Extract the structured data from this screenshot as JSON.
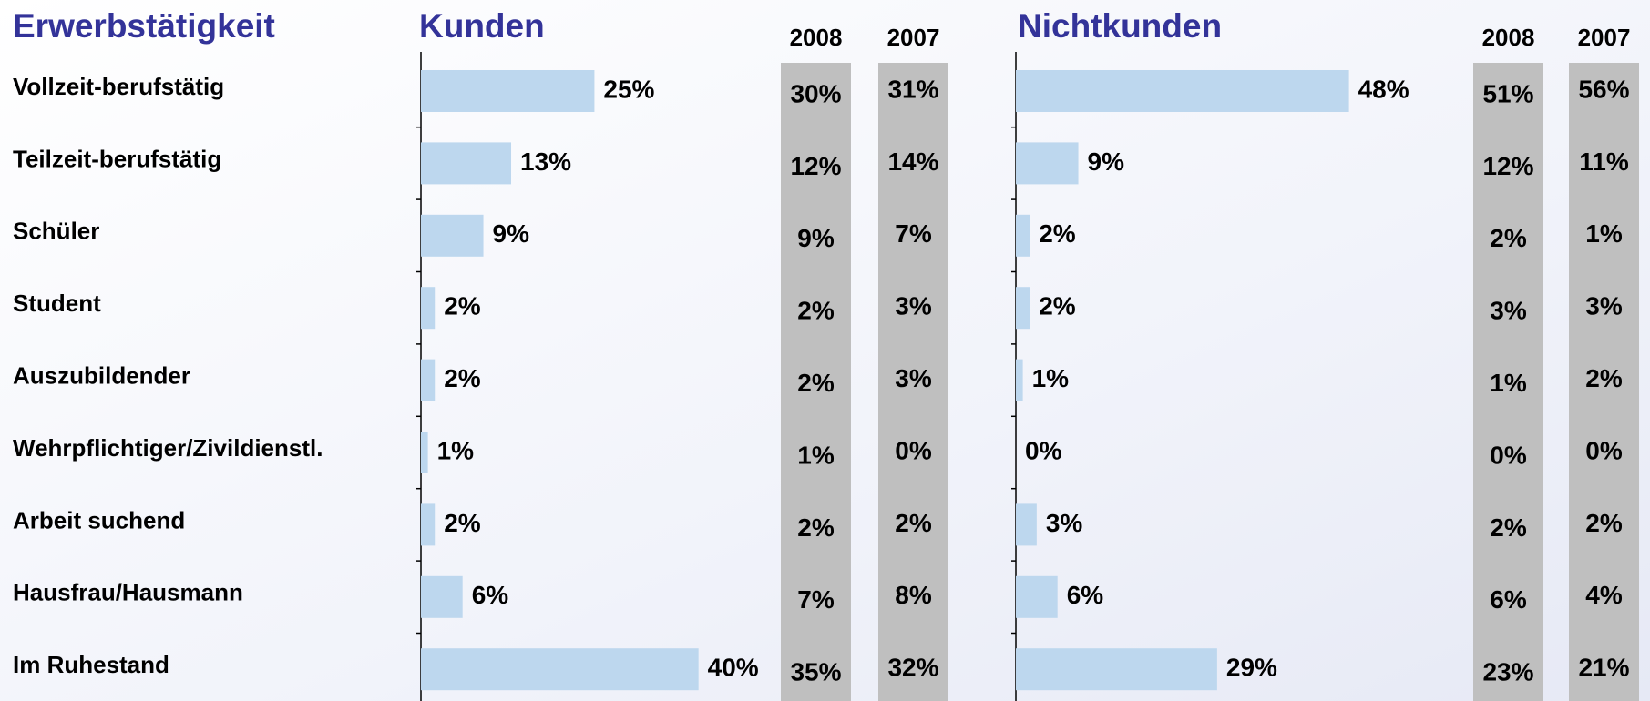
{
  "row_header": "Erwerbstätigkeit",
  "categories": [
    "Vollzeit-berufstätig",
    "Teilzeit-berufstätig",
    "Schüler",
    "Student",
    "Auszubildender",
    "Wehrpflichtiger/Zivildienstl.",
    "Arbeit suchend",
    "Hausfrau/Hausmann",
    "Im Ruhestand"
  ],
  "chart_data": [
    {
      "type": "bar",
      "orientation": "horizontal",
      "title": "Kunden",
      "color": "#bdd7ee",
      "xlim": [
        0,
        60
      ],
      "values": [
        25,
        13,
        9,
        2,
        2,
        1,
        2,
        6,
        40
      ],
      "value_labels": [
        "25%",
        "13%",
        "9%",
        "2%",
        "2%",
        "1%",
        "2%",
        "6%",
        "40%"
      ],
      "comparison": [
        {
          "header": "2008",
          "cells": [
            "30%",
            "12%",
            "9%",
            "2%",
            "2%",
            "1%",
            "2%",
            "7%",
            "35%"
          ]
        },
        {
          "header": "2007",
          "cells": [
            "31%",
            "14%",
            "7%",
            "3%",
            "3%",
            "0%",
            "2%",
            "8%",
            "32%"
          ]
        }
      ]
    },
    {
      "type": "bar",
      "orientation": "horizontal",
      "title": "Nichtkunden",
      "color": "#bdd7ee",
      "xlim": [
        0,
        60
      ],
      "values": [
        48,
        9,
        2,
        2,
        1,
        0,
        3,
        6,
        29
      ],
      "value_labels": [
        "48%",
        "9%",
        "2%",
        "2%",
        "1%",
        "0%",
        "3%",
        "6%",
        "29%"
      ],
      "comparison": [
        {
          "header": "2008",
          "cells": [
            "51%",
            "12%",
            "2%",
            "3%",
            "1%",
            "0%",
            "2%",
            "6%",
            "23%"
          ]
        },
        {
          "header": "2007",
          "cells": [
            "56%",
            "11%",
            "1%",
            "3%",
            "2%",
            "0%",
            "2%",
            "4%",
            "21%"
          ]
        }
      ]
    }
  ]
}
